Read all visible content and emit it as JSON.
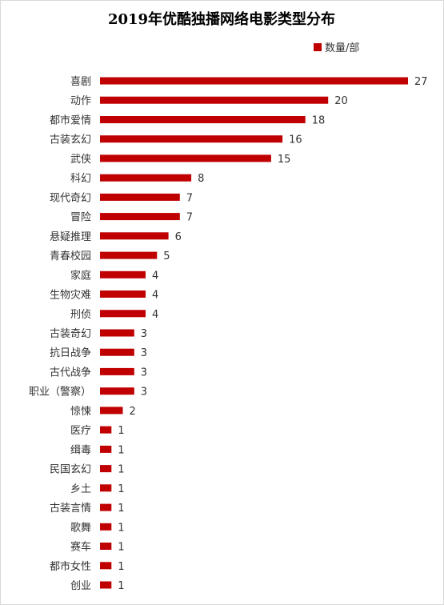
{
  "chart_data": {
    "type": "bar",
    "orientation": "horizontal",
    "title": "2019年优酷独播网络电影类型分布",
    "legend": {
      "position": "top-right",
      "label": "数量/部"
    },
    "categories": [
      "喜剧",
      "动作",
      "都市爱情",
      "古装玄幻",
      "武侠",
      "科幻",
      "现代奇幻",
      "冒险",
      "悬疑推理",
      "青春校园",
      "家庭",
      "生物灾难",
      "刑侦",
      "古装奇幻",
      "抗日战争",
      "古代战争",
      "职业（警察）",
      "惊悚",
      "医疗",
      "缉毒",
      "民国玄幻",
      "乡土",
      "古装言情",
      "歌舞",
      "赛车",
      "都市女性",
      "创业"
    ],
    "series": [
      {
        "name": "数量/部",
        "values": [
          27,
          20,
          18,
          16,
          15,
          8,
          7,
          7,
          6,
          5,
          4,
          4,
          4,
          3,
          3,
          3,
          3,
          2,
          1,
          1,
          1,
          1,
          1,
          1,
          1,
          1,
          1
        ]
      }
    ],
    "xlim": [
      0,
      27
    ],
    "grid": false,
    "bar_color": "#c00000"
  }
}
